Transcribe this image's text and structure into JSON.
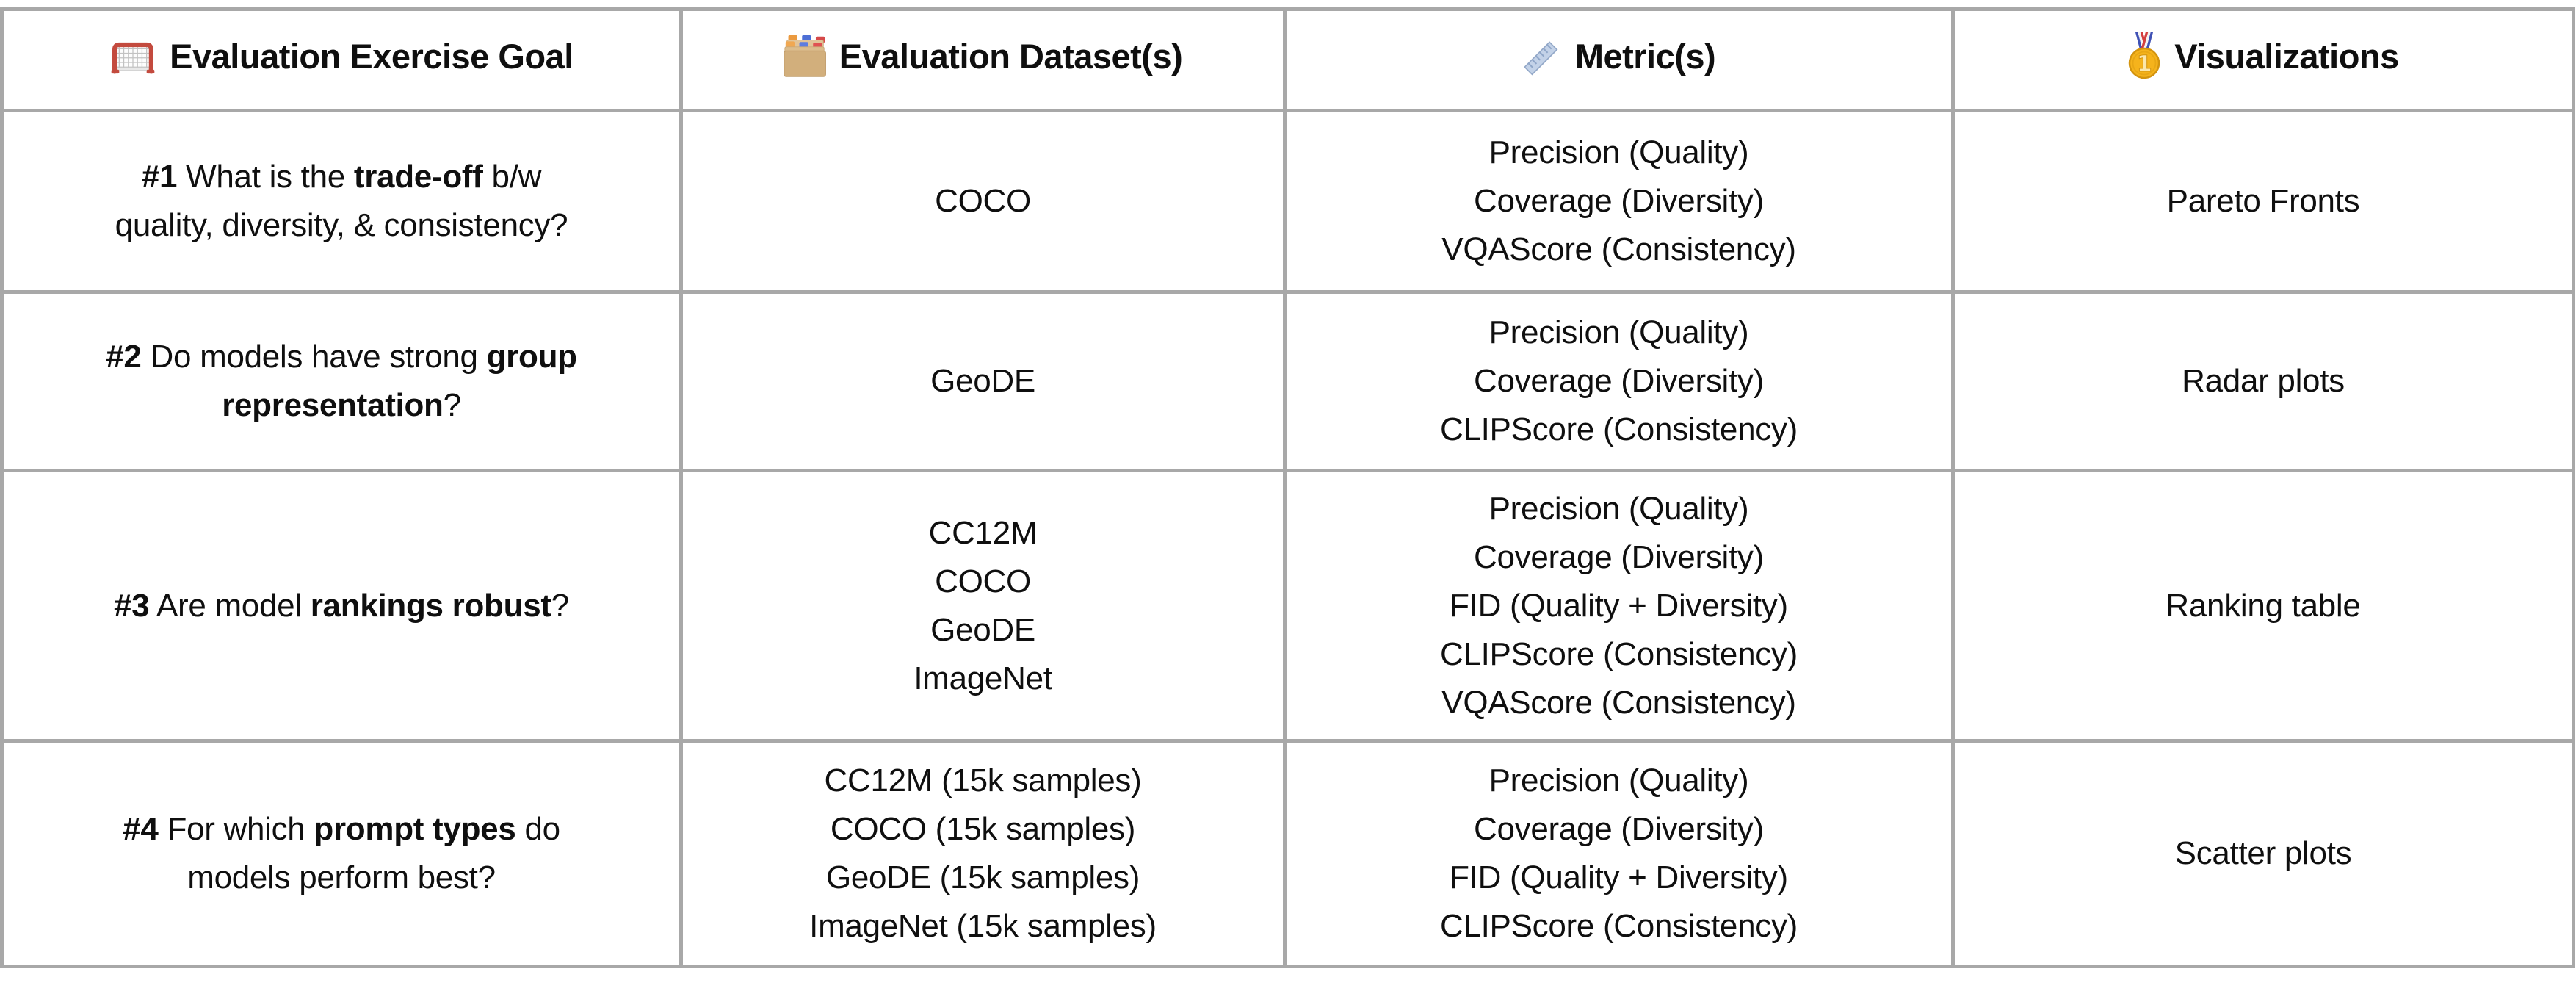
{
  "colors": {
    "border": "#a8a8a8",
    "text": "#0f0f0f",
    "background": "#ffffff",
    "goal_net_red": "#c34a3e",
    "folder_tan": "#d2af7c",
    "tab_blue": "#4d6fd6",
    "tab_red": "#d64949",
    "tab_orange": "#eb9a3f",
    "ruler_blue": "#c3d2e8",
    "medal_gold": "#f5b31c",
    "ribbon_blue": "#3f51b5",
    "ribbon_red": "#d43f3f"
  },
  "table": {
    "headers": [
      {
        "icon": "goal-net-icon",
        "label": "Evaluation Exercise Goal"
      },
      {
        "icon": "card-index-dividers-icon",
        "label": "Evaluation Dataset(s)"
      },
      {
        "icon": "ruler-icon",
        "label": "Metric(s)"
      },
      {
        "icon": "first-place-medal-icon",
        "label": "Visualizations"
      }
    ],
    "rows": [
      {
        "goal_segments": [
          {
            "text": "#1",
            "bold": true
          },
          {
            "text": " What is the ",
            "bold": false
          },
          {
            "text": "trade-off",
            "bold": true
          },
          {
            "text": " b/w",
            "bold": false
          },
          {
            "br": true
          },
          {
            "text": "quality, diversity, & consistency?",
            "bold": false
          }
        ],
        "datasets": [
          "COCO"
        ],
        "metrics": [
          "Precision (Quality)",
          "Coverage (Diversity)",
          "VQAScore (Consistency)"
        ],
        "visualization": "Pareto Fronts"
      },
      {
        "goal_segments": [
          {
            "text": "#2",
            "bold": true
          },
          {
            "text": " Do models have strong ",
            "bold": false
          },
          {
            "text": "group",
            "bold": true
          },
          {
            "br": true
          },
          {
            "text": "representation",
            "bold": true
          },
          {
            "text": "?",
            "bold": false
          }
        ],
        "datasets": [
          "GeoDE"
        ],
        "metrics": [
          "Precision (Quality)",
          "Coverage (Diversity)",
          "CLIPScore (Consistency)"
        ],
        "visualization": "Radar plots"
      },
      {
        "goal_segments": [
          {
            "text": "#3",
            "bold": true
          },
          {
            "text": " Are model ",
            "bold": false
          },
          {
            "text": "rankings robust",
            "bold": true
          },
          {
            "text": "?",
            "bold": false
          }
        ],
        "datasets": [
          "CC12M",
          "COCO",
          "GeoDE",
          "ImageNet"
        ],
        "metrics": [
          "Precision (Quality)",
          "Coverage (Diversity)",
          "FID (Quality + Diversity)",
          "CLIPScore (Consistency)",
          "VQAScore (Consistency)"
        ],
        "visualization": "Ranking table"
      },
      {
        "goal_segments": [
          {
            "text": "#4",
            "bold": true
          },
          {
            "text": " For which ",
            "bold": false
          },
          {
            "text": "prompt types",
            "bold": true
          },
          {
            "text": " do",
            "bold": false
          },
          {
            "br": true
          },
          {
            "text": "models perform best?",
            "bold": false
          }
        ],
        "datasets": [
          "CC12M (15k samples)",
          "COCO (15k samples)",
          "GeoDE (15k samples)",
          "ImageNet (15k samples)"
        ],
        "metrics": [
          "Precision (Quality)",
          "Coverage (Diversity)",
          "FID (Quality + Diversity)",
          "CLIPScore (Consistency)"
        ],
        "visualization": "Scatter plots"
      }
    ]
  }
}
